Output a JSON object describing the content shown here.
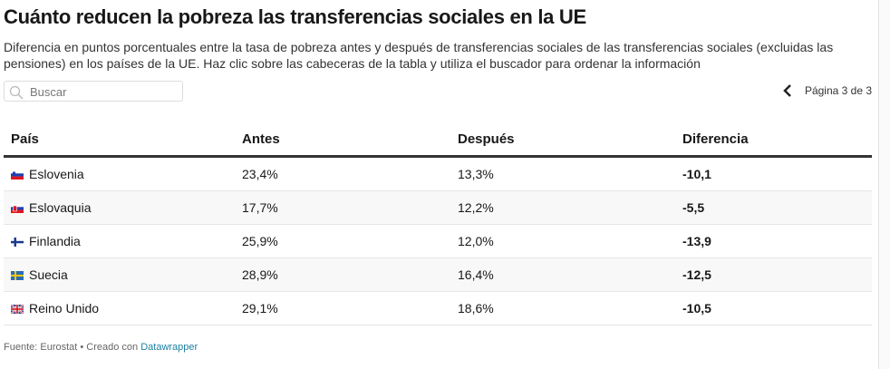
{
  "title": "Cuánto reducen la pobreza las transferencias sociales en la UE",
  "subtitle": "Diferencia en puntos porcentuales entre la tasa de pobreza antes y después de transferencias sociales de las transferencias sociales (excluidas las pensiones) en los países de la UE. Haz clic sobre las cabeceras de la tabla y utiliza el buscador para ordenar la información",
  "search": {
    "placeholder": "Buscar",
    "value": ""
  },
  "pagination": {
    "label": "Página 3 de 3"
  },
  "table": {
    "headers": [
      "País",
      "Antes",
      "Después",
      "Diferencia"
    ],
    "rows": [
      {
        "country": "Eslovenia",
        "flag": "si",
        "antes": "23,4%",
        "despues": "13,3%",
        "diferencia": "-10,1"
      },
      {
        "country": "Eslovaquia",
        "flag": "sk",
        "antes": "17,7%",
        "despues": "12,2%",
        "diferencia": "-5,5"
      },
      {
        "country": "Finlandia",
        "flag": "fi",
        "antes": "25,9%",
        "despues": "12,0%",
        "diferencia": "-13,9"
      },
      {
        "country": "Suecia",
        "flag": "se",
        "antes": "28,9%",
        "despues": "16,4%",
        "diferencia": "-12,5"
      },
      {
        "country": "Reino Unido",
        "flag": "gb",
        "antes": "29,1%",
        "despues": "18,6%",
        "diferencia": "-10,5"
      }
    ]
  },
  "footer": {
    "source": "Fuente: Eurostat • Creado con ",
    "link": "Datawrapper"
  },
  "colors": {
    "link": "#1d81a2",
    "header_rule": "#333333"
  }
}
